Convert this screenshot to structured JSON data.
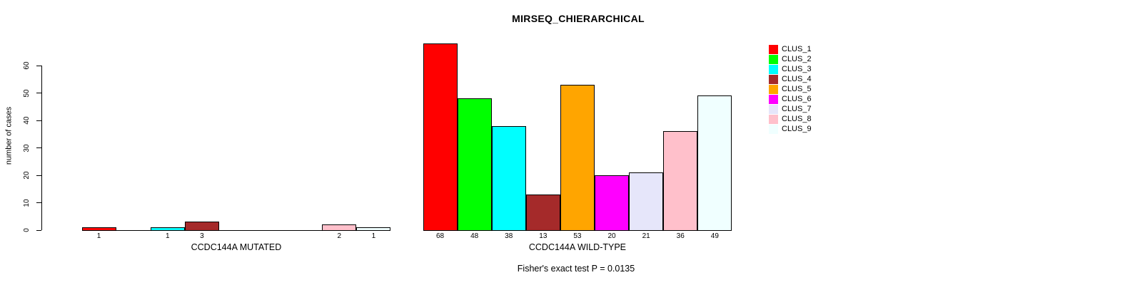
{
  "title": "MIRSEQ_CHIERARCHICAL",
  "footer": "Fisher's exact test P = 0.0135",
  "chart_data": {
    "type": "bar",
    "title": "MIRSEQ_CHIERARCHICAL",
    "ylabel": "number of cases",
    "xlabel": "",
    "ylim": [
      0,
      68
    ],
    "yticks": [
      0,
      10,
      20,
      30,
      40,
      50,
      60
    ],
    "grid": false,
    "legend_position": "right",
    "clusters": [
      "CLUS_1",
      "CLUS_2",
      "CLUS_3",
      "CLUS_4",
      "CLUS_5",
      "CLUS_6",
      "CLUS_7",
      "CLUS_8",
      "CLUS_9"
    ],
    "colors": [
      "#FF0000",
      "#00FF00",
      "#00FFFF",
      "#A52A2A",
      "#FFA500",
      "#FF00FF",
      "#E6E6FA",
      "#FFC0CB",
      "#F0FFFF"
    ],
    "groups": [
      {
        "label": "CCDC144A MUTATED",
        "values": [
          1,
          0,
          1,
          3,
          0,
          0,
          0,
          2,
          1
        ]
      },
      {
        "label": "CCDC144A WILD-TYPE",
        "values": [
          68,
          48,
          38,
          13,
          53,
          20,
          21,
          36,
          49
        ]
      }
    ],
    "annotation": "Fisher's exact test P = 0.0135"
  }
}
